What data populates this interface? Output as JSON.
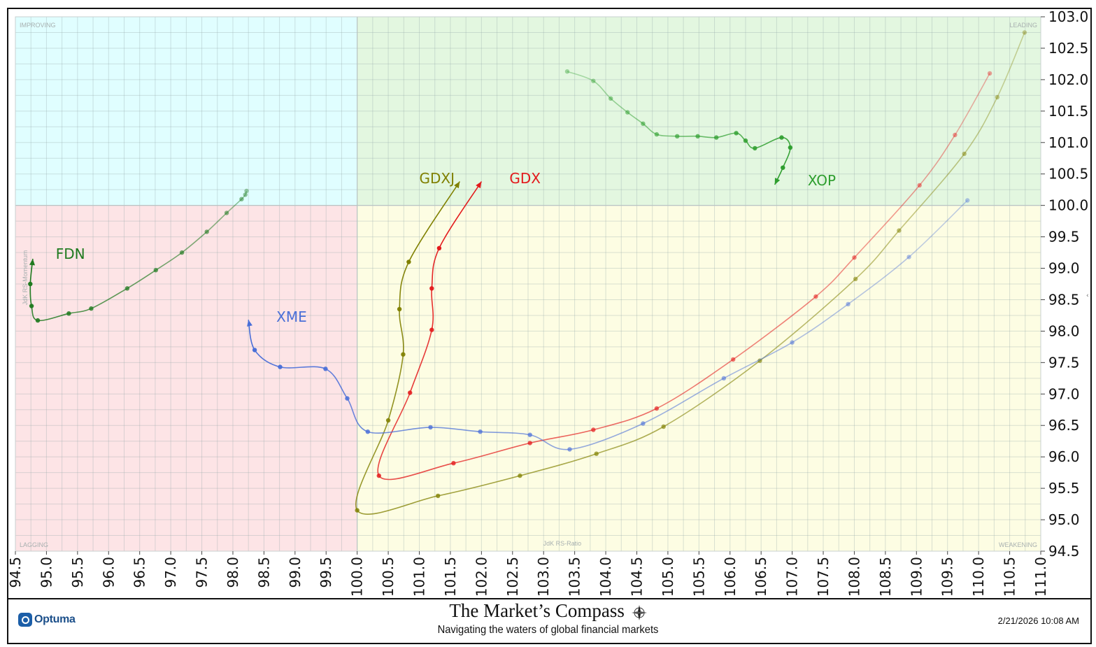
{
  "chart_data": {
    "type": "scatter",
    "xlabel": "JdK RS-Ratio",
    "ylabel": "JdK RS-Momentum",
    "xlim": [
      94.5,
      111.0
    ],
    "ylim": [
      94.5,
      103.0
    ],
    "x_ticks": [
      "94.5",
      "95.0",
      "95.5",
      "96.0",
      "96.5",
      "97.0",
      "97.5",
      "98.0",
      "98.5",
      "99.0",
      "99.5",
      "100.0",
      "100.5",
      "101.0",
      "101.5",
      "102.0",
      "102.5",
      "103.0",
      "103.5",
      "104.0",
      "104.5",
      "105.0",
      "105.5",
      "106.0",
      "106.5",
      "107.0",
      "107.5",
      "108.0",
      "108.5",
      "109.0",
      "109.5",
      "110.0",
      "110.5",
      "111.0"
    ],
    "y_ticks": [
      "94.5",
      "95.0",
      "95.5",
      "96.0",
      "96.5",
      "97.0",
      "97.5",
      "98.0",
      "98.5",
      "99.0",
      "99.5",
      "100.0",
      "100.5",
      "101.0",
      "101.5",
      "102.0",
      "102.5",
      "103.0"
    ],
    "grid": true,
    "quadrants": [
      {
        "name": "IMPROVING",
        "color": "#e0feff"
      },
      {
        "name": "LEADING",
        "color": "#e3f7e0"
      },
      {
        "name": "LAGGING",
        "color": "#fde4e6"
      },
      {
        "name": "WEAKENING",
        "color": "#fdfde3"
      }
    ],
    "series": [
      {
        "name": "FDN",
        "color": "#1f7a1f",
        "points": [
          [
            98.22,
            100.23
          ],
          [
            98.2,
            100.17
          ],
          [
            98.14,
            100.1
          ],
          [
            97.9,
            99.88
          ],
          [
            97.58,
            99.58
          ],
          [
            97.18,
            99.25
          ],
          [
            96.76,
            98.97
          ],
          [
            96.3,
            98.68
          ],
          [
            95.72,
            98.36
          ],
          [
            95.36,
            98.28
          ],
          [
            94.86,
            98.17
          ],
          [
            94.76,
            98.4
          ],
          [
            94.74,
            98.75
          ]
        ],
        "head": [
          94.78,
          99.15
        ]
      },
      {
        "name": "XOP",
        "color": "#2e9e2e",
        "points": [
          [
            103.38,
            102.13
          ],
          [
            103.8,
            101.98
          ],
          [
            104.08,
            101.7
          ],
          [
            104.35,
            101.48
          ],
          [
            104.6,
            101.3
          ],
          [
            104.82,
            101.13
          ],
          [
            105.15,
            101.1
          ],
          [
            105.48,
            101.1
          ],
          [
            105.78,
            101.08
          ],
          [
            106.1,
            101.15
          ],
          [
            106.25,
            101.03
          ],
          [
            106.4,
            100.91
          ],
          [
            106.83,
            101.08
          ],
          [
            106.97,
            100.92
          ],
          [
            106.85,
            100.6
          ]
        ],
        "head": [
          106.72,
          100.33
        ]
      },
      {
        "name": "GDX",
        "color": "#e31a1c",
        "points": [
          [
            110.18,
            102.1
          ],
          [
            109.62,
            101.12
          ],
          [
            109.05,
            100.32
          ],
          [
            108.0,
            99.17
          ],
          [
            107.38,
            98.55
          ],
          [
            106.05,
            97.55
          ],
          [
            104.82,
            96.77
          ],
          [
            103.8,
            96.43
          ],
          [
            102.78,
            96.22
          ],
          [
            101.55,
            95.9
          ],
          [
            100.35,
            95.7
          ],
          [
            100.85,
            97.02
          ],
          [
            101.2,
            98.02
          ],
          [
            101.2,
            98.68
          ],
          [
            101.32,
            99.32
          ]
        ],
        "head": [
          102.0,
          100.38
        ]
      },
      {
        "name": "GDXJ",
        "color": "#808000",
        "points": [
          [
            110.74,
            102.75
          ],
          [
            110.3,
            101.72
          ],
          [
            109.77,
            100.82
          ],
          [
            108.72,
            99.6
          ],
          [
            108.02,
            98.83
          ],
          [
            106.48,
            97.53
          ],
          [
            104.93,
            96.48
          ],
          [
            103.85,
            96.05
          ],
          [
            102.62,
            95.7
          ],
          [
            101.3,
            95.38
          ],
          [
            100.0,
            95.15
          ],
          [
            100.5,
            96.58
          ],
          [
            100.74,
            97.63
          ],
          [
            100.68,
            98.35
          ],
          [
            100.83,
            99.1
          ]
        ],
        "head": [
          101.65,
          100.38
        ]
      },
      {
        "name": "XME",
        "color": "#4a6fd8",
        "points": [
          [
            109.82,
            100.08
          ],
          [
            108.88,
            99.18
          ],
          [
            107.9,
            98.43
          ],
          [
            107.0,
            97.82
          ],
          [
            105.9,
            97.25
          ],
          [
            104.6,
            96.53
          ],
          [
            103.42,
            96.12
          ],
          [
            102.78,
            96.35
          ],
          [
            101.98,
            96.4
          ],
          [
            101.18,
            96.47
          ],
          [
            100.17,
            96.4
          ],
          [
            99.84,
            96.93
          ],
          [
            99.49,
            97.4
          ],
          [
            98.76,
            97.43
          ],
          [
            98.35,
            97.7
          ]
        ],
        "head": [
          98.25,
          98.18
        ]
      }
    ],
    "labels": [
      {
        "series": "FDN",
        "text": "FDN",
        "x": 95.15,
        "y": 99.15
      },
      {
        "series": "XOP",
        "text": "XOP",
        "x": 107.25,
        "y": 100.32
      },
      {
        "series": "GDX",
        "text": "GDX",
        "x": 102.45,
        "y": 100.35
      },
      {
        "series": "GDXJ",
        "text": "GDXJ",
        "x": 101.0,
        "y": 100.35
      },
      {
        "series": "XME",
        "text": "XME",
        "x": 98.7,
        "y": 98.15
      }
    ]
  },
  "footer": {
    "brand": "Optuma",
    "title": "The Market’s Compass",
    "subtitle": "Navigating the waters of global financial markets",
    "timestamp": "2/21/2026 10:08 AM"
  }
}
